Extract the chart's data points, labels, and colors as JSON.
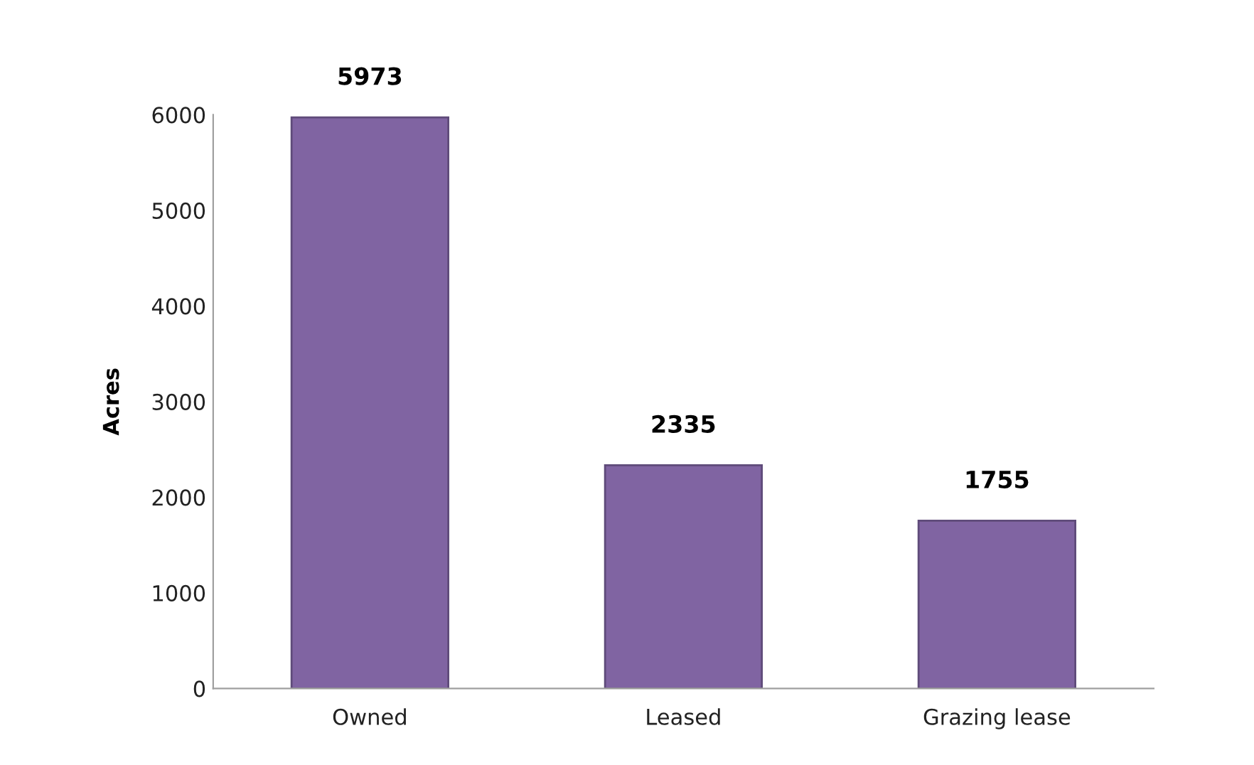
{
  "chart_data": {
    "type": "bar",
    "ylabel": "Acres",
    "categories": [
      "Owned",
      "Leased",
      "Grazing lease"
    ],
    "values": [
      5973,
      2335,
      1755
    ],
    "color": "#8064a2",
    "ylim": [
      0,
      6000
    ],
    "yticks": [
      0,
      1000,
      2000,
      3000,
      4000,
      5000,
      6000
    ],
    "grid": false,
    "data_labels": true
  }
}
